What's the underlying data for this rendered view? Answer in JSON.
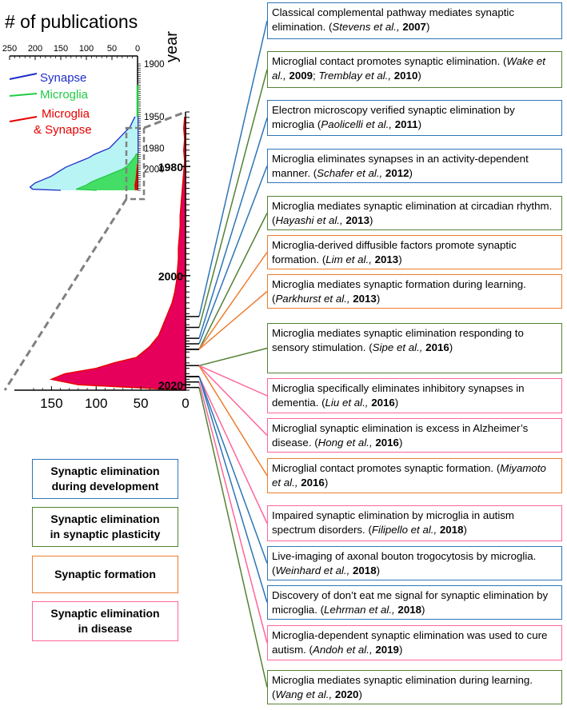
{
  "title": "# of publications",
  "year_label": "year",
  "colors": {
    "synapse": "#1f2ec9",
    "synapse_fill": "#b8f4f4",
    "microglia": "#22cc44",
    "microglia_fill": "#44dd66",
    "mg_syn": "#e60000",
    "mg_syn_fill": "#e6005c",
    "dev": "#2e75b6",
    "plast": "#548235",
    "form": "#ed7d31",
    "dis": "#ff6699",
    "dash": "#808080"
  },
  "chart_data": [
    {
      "type": "area",
      "orientation": "horizontal-leftward",
      "xlim": [
        250,
        0
      ],
      "ylim": [
        1900,
        2020
      ],
      "x_ticks": [
        "250",
        "200",
        "150",
        "100",
        "50",
        "0"
      ],
      "y_ticks": [
        "1900",
        "1950",
        "1980",
        "2000"
      ],
      "legend": [
        "Synapse",
        "Microglia",
        "Microglia & Synapse"
      ],
      "series": [
        {
          "name": "Synapse",
          "years": [
            1950,
            1955,
            1960,
            1965,
            1970,
            1975,
            1980,
            1983,
            1986,
            1989,
            1992,
            1995,
            1998,
            2001,
            2004,
            2007,
            2010,
            2013,
            2015,
            2017,
            2019,
            2020
          ],
          "values": [
            5,
            10,
            15,
            25,
            35,
            45,
            55,
            70,
            85,
            95,
            110,
            125,
            140,
            150,
            160,
            170,
            185,
            200,
            205,
            210,
            205,
            150
          ]
        },
        {
          "name": "Microglia",
          "years": [
            1985,
            1988,
            1991,
            1994,
            1997,
            2000,
            2003,
            2006,
            2009,
            2012,
            2015,
            2017,
            2019,
            2020
          ],
          "values": [
            2,
            5,
            10,
            15,
            20,
            30,
            45,
            60,
            75,
            90,
            100,
            110,
            120,
            80
          ]
        },
        {
          "name": "Microglia & Synapse",
          "years": [
            1995,
            2000,
            2005,
            2010,
            2015,
            2020
          ],
          "values": [
            0,
            1,
            2,
            3,
            5,
            4
          ]
        }
      ]
    },
    {
      "type": "area",
      "orientation": "horizontal-leftward",
      "series_name": "Microglia & Synapse",
      "xlim": [
        170,
        0
      ],
      "x_ticks": [
        "150",
        "100",
        "50",
        "0"
      ],
      "y_ticks": [
        "1980",
        "2000",
        "2020"
      ],
      "years": [
        1971,
        1973,
        1975,
        1977,
        1979,
        1981,
        1983,
        1985,
        1987,
        1989,
        1991,
        1993,
        1995,
        1997,
        1999,
        2001,
        2003,
        2005,
        2007,
        2009,
        2011,
        2013,
        2015,
        2016,
        2017,
        2018,
        2019,
        2020
      ],
      "values": [
        1,
        2,
        1,
        2,
        1,
        2,
        3,
        4,
        5,
        6,
        6,
        7,
        8,
        8,
        9,
        10,
        12,
        15,
        20,
        25,
        30,
        40,
        55,
        80,
        100,
        135,
        150,
        120
      ]
    }
  ],
  "entries": [
    {
      "category": "dev",
      "year": 2007,
      "text": "Classical complemental pathway mediates synaptic elimination. (",
      "refs": [
        {
          "a": "Stevens et al.,",
          "y": "2007"
        }
      ],
      "tail": ")"
    },
    {
      "category": "plast",
      "year": 2009,
      "text": "Microglial contact promotes synaptic elimination. (",
      "refs": [
        {
          "a": "Wake et al.,",
          "y": "2009"
        },
        {
          "a": "Tremblay et al.,",
          "y": "2010"
        }
      ],
      "tail": ")"
    },
    {
      "category": "dev",
      "year": 2011,
      "text": "Electron microscopy verified synaptic elimination by microglia (",
      "refs": [
        {
          "a": "Paolicelli et al.,",
          "y": "2011"
        }
      ],
      "tail": ")"
    },
    {
      "category": "dev",
      "year": 2012,
      "text": "Microglia eliminates synapses in an activity-dependent manner. (",
      "refs": [
        {
          "a": "Schafer et al.,",
          "y": "2012"
        }
      ],
      "tail": ")"
    },
    {
      "category": "plast",
      "year": 2013,
      "text": "Microglia mediates synaptic elimination at circadian rhythm. (",
      "refs": [
        {
          "a": "Hayashi et al.,",
          "y": "2013"
        }
      ],
      "tail": ")"
    },
    {
      "category": "form",
      "year": 2013,
      "text": "Microglia-derived diffusible factors promote synaptic formation. (",
      "refs": [
        {
          "a": "Lim et al.,",
          "y": "2013"
        }
      ],
      "tail": ")"
    },
    {
      "category": "form",
      "year": 2013,
      "text": "Microglia mediates synaptic formation during learning. (",
      "refs": [
        {
          "a": "Parkhurst et al.,",
          "y": "2013"
        }
      ],
      "tail": ")"
    },
    {
      "category": "plast",
      "year": 2016,
      "text": "Microglia mediates synaptic elimination responding to sensory stimulation. (",
      "refs": [
        {
          "a": "Sipe et al.,",
          "y": "2016"
        }
      ],
      "tail": ")"
    },
    {
      "category": "dis",
      "year": 2016,
      "text": "Microglia specifically eliminates inhibitory synapses in dementia. (",
      "refs": [
        {
          "a": "Liu et al.,",
          "y": "2016"
        }
      ],
      "tail": ")"
    },
    {
      "category": "dis",
      "year": 2016,
      "text": "Microglial synaptic elimination is excess in Alzheimer’s disease. (",
      "refs": [
        {
          "a": "Hong et al.,",
          "y": "2016"
        }
      ],
      "tail": ")"
    },
    {
      "category": "form",
      "year": 2016,
      "text": "Microglial contact promotes synaptic formation. (",
      "refs": [
        {
          "a": "Miyamoto et al.,",
          "y": "2016"
        }
      ],
      "tail": ")"
    },
    {
      "category": "dis",
      "year": 2018,
      "text": "Impaired synaptic elimination by microglia in autism spectrum disorders. (",
      "refs": [
        {
          "a": "Filipello et al.,",
          "y": "2018"
        }
      ],
      "tail": ")"
    },
    {
      "category": "dev",
      "year": 2018,
      "text": "Live-imaging of axonal bouton trogocytosis by microglia. (",
      "refs": [
        {
          "a": "Weinhard et al.,",
          "y": "2018"
        }
      ],
      "tail": ")"
    },
    {
      "category": "dev",
      "year": 2018,
      "text": "Discovery of don’t eat me signal for synaptic elimination by microglia. (",
      "refs": [
        {
          "a": "Lehrman et al.,",
          "y": "2018"
        }
      ],
      "tail": ")"
    },
    {
      "category": "dis",
      "year": 2019,
      "text": "Microglia-dependent synaptic elimination was used to cure autism. (",
      "refs": [
        {
          "a": "Andoh et al.,",
          "y": "2019"
        }
      ],
      "tail": ")"
    },
    {
      "category": "plast",
      "year": 2020,
      "text": "Microglia mediates synaptic elimination during learning. (",
      "refs": [
        {
          "a": "Wang et al.,",
          "y": "2020"
        }
      ],
      "tail": ")"
    }
  ],
  "categories": [
    {
      "key": "dev",
      "label_line1": "Synaptic elimination",
      "label_line2": "during development"
    },
    {
      "key": "plast",
      "label_line1": "Synaptic elimination",
      "label_line2": "in synaptic plasticity"
    },
    {
      "key": "form",
      "label_line1": "Synaptic formation",
      "label_line2": ""
    },
    {
      "key": "dis",
      "label_line1": "Synaptic elimination",
      "label_line2": "in disease"
    }
  ]
}
